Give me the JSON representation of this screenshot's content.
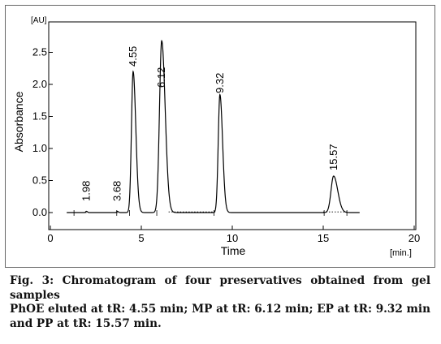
{
  "chart_data": {
    "type": "line",
    "ylabel": "Absorbance",
    "yunit": "[AU]",
    "xlabel": "Time",
    "xunit": "[min.]",
    "xlim": [
      0,
      20
    ],
    "ylim": [
      -0.1,
      3.0
    ],
    "xticks": [
      0,
      5,
      10,
      15,
      20
    ],
    "yticks": [
      0.0,
      0.5,
      1.0,
      1.5,
      2.0,
      2.5
    ],
    "ytick_labels": [
      "0.0",
      "0.5",
      "1.0",
      "1.5",
      "2.0",
      "2.5"
    ],
    "series": [
      {
        "peaks": [
          {
            "rt": 1.98,
            "label": "1.98",
            "height": 0.02
          },
          {
            "rt": 3.68,
            "label": "3.68",
            "height": 0.02
          },
          {
            "rt": 4.55,
            "label": "4.55",
            "height": 2.2
          },
          {
            "rt": 6.12,
            "label": "6.12",
            "height": 2.68
          },
          {
            "rt": 9.32,
            "label": "9.32",
            "height": 1.84
          },
          {
            "rt": 15.57,
            "label": "15.57",
            "height": 0.57
          }
        ]
      }
    ],
    "colors": {
      "line": "#000000",
      "axis": "#000000"
    }
  },
  "caption": {
    "figure": "Fig. 3: Chromatogram of four preservatives obtained from gel samples",
    "description": "PhOE eluted at tR: 4.55 min; MP at tR: 6.12 min; EP at tR: 9.32 min and PP at tR: 15.57 min."
  }
}
